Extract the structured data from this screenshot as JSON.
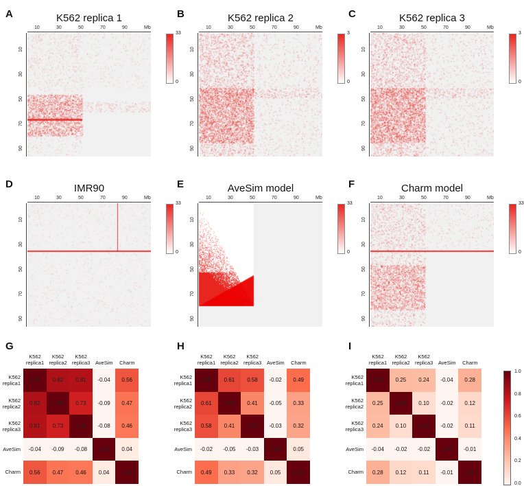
{
  "heatmap_panels": [
    {
      "letter": "A",
      "title": "K562 replica 1",
      "cbar_max": "33",
      "cbar_min": "0",
      "pattern": "k1"
    },
    {
      "letter": "B",
      "title": "K562 replica 2",
      "cbar_max": "3",
      "cbar_min": "0",
      "pattern": "k2"
    },
    {
      "letter": "C",
      "title": "K562 replica 3",
      "cbar_max": "3",
      "cbar_min": "0",
      "pattern": "k3"
    },
    {
      "letter": "D",
      "title": "IMR90",
      "cbar_max": "33",
      "cbar_min": "0",
      "pattern": "imr"
    },
    {
      "letter": "E",
      "title": "AveSim model",
      "cbar_max": "33",
      "cbar_min": "0",
      "pattern": "ave"
    },
    {
      "letter": "F",
      "title": "Charm model",
      "cbar_max": "33",
      "cbar_min": "0",
      "pattern": "charm"
    }
  ],
  "axis": {
    "top_ticks": [
      "10",
      "30",
      "50",
      "70",
      "90",
      "Mb"
    ],
    "left_ticks": [
      "10",
      "30",
      "50",
      "70",
      "90"
    ]
  },
  "chart_data": [
    {
      "type": "heatmap",
      "panel": "G",
      "categories": [
        "K562 replica1",
        "K562 replica2",
        "K562 replica3",
        "AveSim",
        "Charm"
      ],
      "values": [
        [
          1.0,
          0.82,
          0.81,
          -0.04,
          0.56
        ],
        [
          0.82,
          1.0,
          0.73,
          -0.09,
          0.47
        ],
        [
          0.81,
          0.73,
          1.0,
          -0.08,
          0.46
        ],
        [
          -0.04,
          -0.09,
          -0.08,
          1.0,
          0.04
        ],
        [
          0.56,
          0.47,
          0.46,
          0.04,
          1.0
        ]
      ]
    },
    {
      "type": "heatmap",
      "panel": "H",
      "categories": [
        "K562 replica1",
        "K562 replica2",
        "K562 replica3",
        "AveSim",
        "Charm"
      ],
      "values": [
        [
          1.0,
          0.61,
          0.58,
          -0.02,
          0.49
        ],
        [
          0.61,
          1.0,
          0.41,
          -0.05,
          0.33
        ],
        [
          0.58,
          0.41,
          1.0,
          -0.03,
          0.32
        ],
        [
          -0.02,
          -0.05,
          -0.03,
          1.0,
          0.05
        ],
        [
          0.49,
          0.33,
          0.32,
          0.05,
          1.0
        ]
      ]
    },
    {
      "type": "heatmap",
      "panel": "I",
      "categories": [
        "K562 replica1",
        "K562 replica2",
        "K562 replica3",
        "AveSim",
        "Charm"
      ],
      "values": [
        [
          1.0,
          0.25,
          0.24,
          -0.04,
          0.28
        ],
        [
          0.25,
          1.0,
          0.1,
          -0.02,
          0.12
        ],
        [
          0.24,
          0.1,
          1.0,
          -0.02,
          0.11
        ],
        [
          -0.04,
          -0.02,
          -0.02,
          1.0,
          -0.01
        ],
        [
          0.28,
          0.12,
          0.11,
          -0.01,
          1.0
        ]
      ]
    }
  ],
  "corr_labels": {
    "cols": [
      [
        "K562",
        "replica1"
      ],
      [
        "K562",
        "replica2"
      ],
      [
        "K562",
        "replica3"
      ],
      [
        "AveSim",
        ""
      ],
      [
        "Charm",
        ""
      ]
    ],
    "rows": [
      [
        "K562",
        "replica1"
      ],
      [
        "K562",
        "replica2"
      ],
      [
        "K562",
        "replica3"
      ],
      [
        "AveSim",
        ""
      ],
      [
        "Charm",
        ""
      ]
    ]
  },
  "corr_colorbar": {
    "ticks": [
      "0.0",
      "0.2",
      "0.4",
      "0.6",
      "0.8",
      "1.0"
    ]
  }
}
